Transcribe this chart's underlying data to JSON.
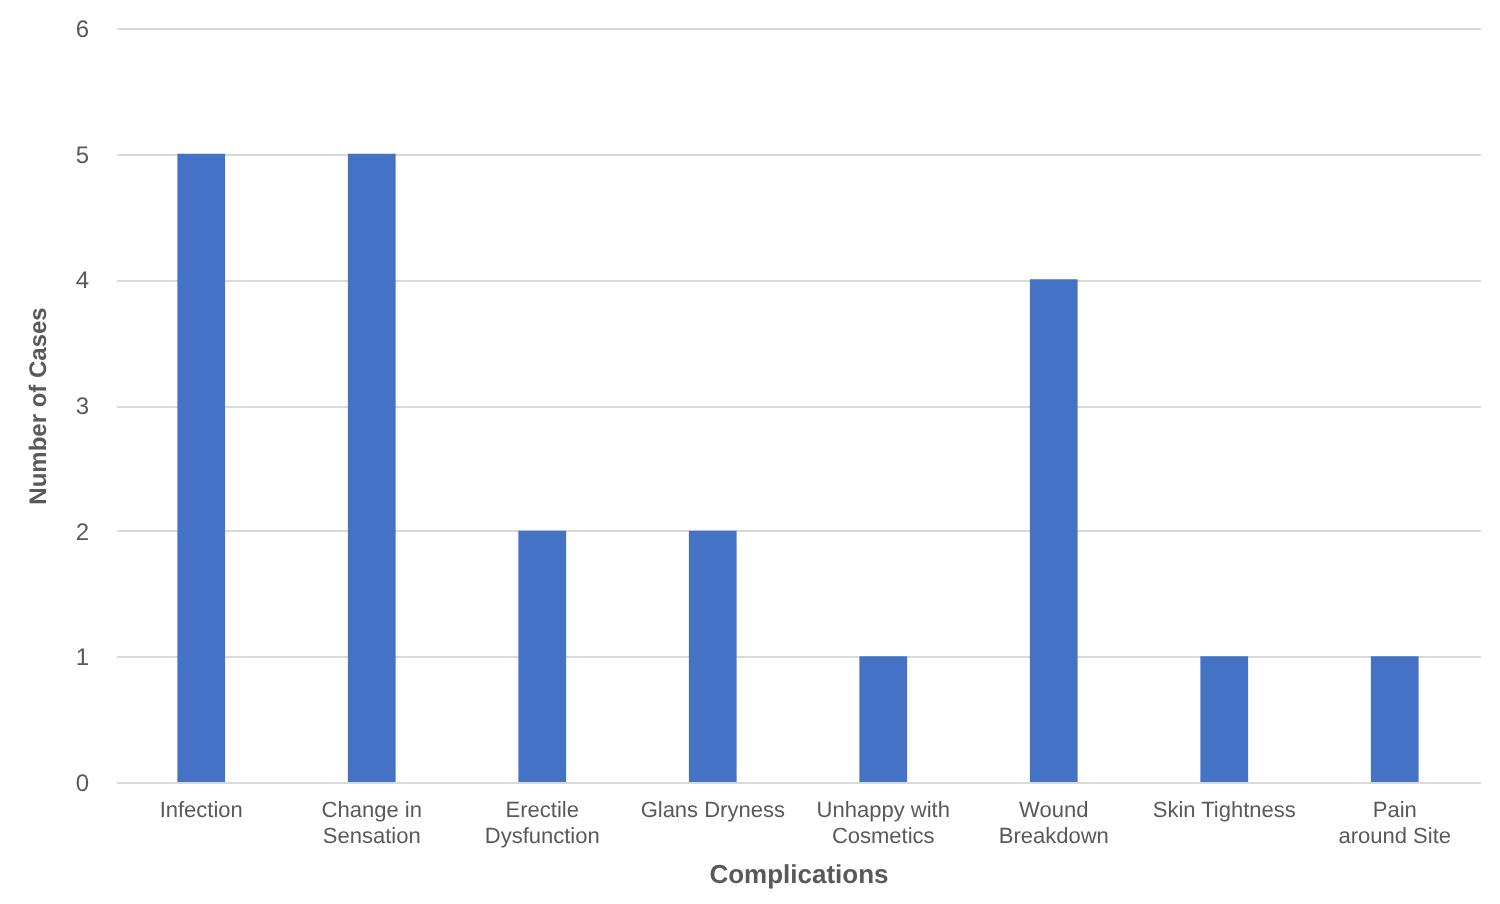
{
  "chart_data": {
    "type": "bar",
    "xlabel": "Complications",
    "ylabel": "Number of Cases",
    "categories": [
      "Infection",
      "Change in Sensation",
      "Erectile Dysfunction",
      "Glans Dryness",
      "Unhappy with Cosmetics",
      "Wound Breakdown",
      "Skin Tightness",
      "Pain around Site"
    ],
    "values": [
      5,
      5,
      2,
      2,
      1,
      4,
      1,
      1
    ],
    "color": "#4472c4",
    "ylim": [
      0,
      6
    ],
    "yticks": [
      0,
      1,
      2,
      3,
      4,
      5,
      6
    ],
    "grid": true
  }
}
